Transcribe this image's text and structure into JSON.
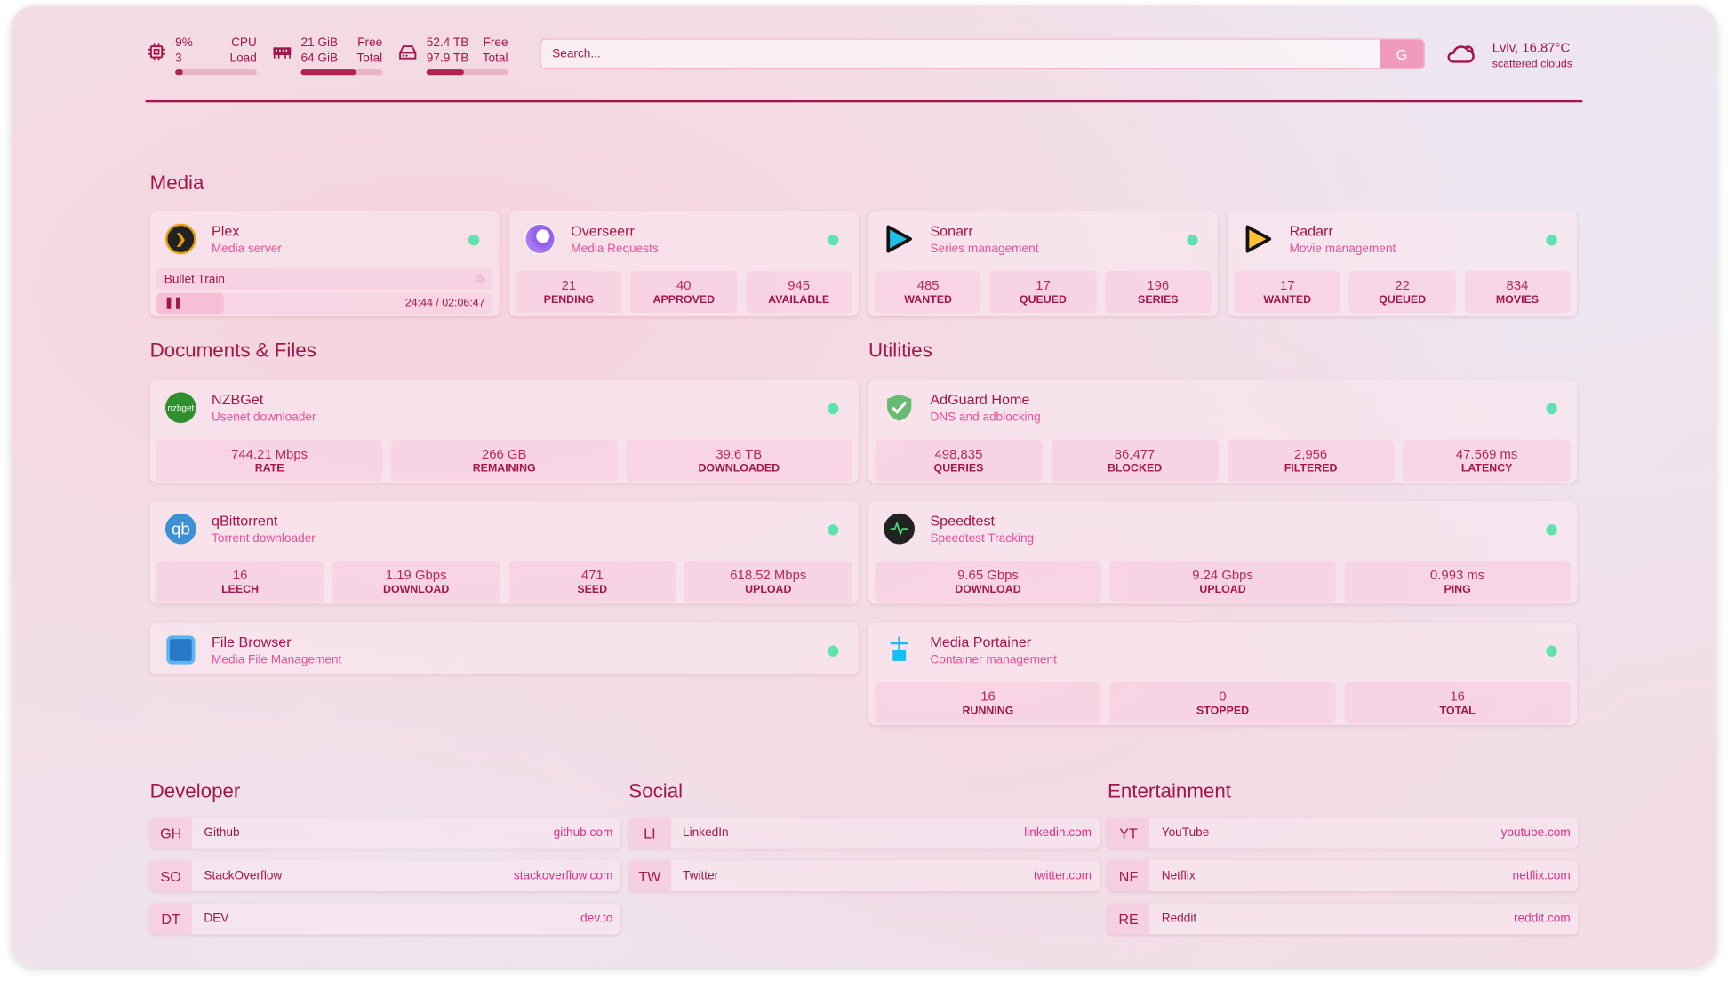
{
  "resources": {
    "cpu": {
      "value": "9%",
      "sub_value": "3",
      "label": "CPU",
      "sub_label": "Load",
      "usage_percent": 9,
      "icon": "cpu-icon"
    },
    "memory": {
      "value": "21 GiB",
      "sub_value": "64 GiB",
      "label": "Free",
      "sub_label": "Total",
      "usage_percent": 67,
      "icon": "memory-icon"
    },
    "disk": {
      "value": "52.4 TB",
      "sub_value": "97.9 TB",
      "label": "Free",
      "sub_label": "Total",
      "usage_percent": 46,
      "icon": "disk-icon"
    }
  },
  "search": {
    "placeholder": "Search...",
    "button": "G"
  },
  "weather": {
    "location": "Lviv, 16.87°C",
    "condition": "scattered clouds",
    "icon": "cloud-icon"
  },
  "colors": {
    "accent": "#a3164a",
    "subtitle": "#e8509a",
    "status_online": "#5fe3ad"
  },
  "media": {
    "title": "Media",
    "plex": {
      "name": "Plex",
      "desc": "Media server",
      "now_playing": "Bullet Train",
      "time": "24:44 / 02:06:47",
      "progress_percent": 20
    },
    "cards": [
      {
        "name": "Overseerr",
        "desc": "Media Requests",
        "stats": [
          {
            "v": "21",
            "l": "PENDING"
          },
          {
            "v": "40",
            "l": "APPROVED"
          },
          {
            "v": "945",
            "l": "AVAILABLE"
          }
        ]
      },
      {
        "name": "Sonarr",
        "desc": "Series management",
        "stats": [
          {
            "v": "485",
            "l": "WANTED"
          },
          {
            "v": "17",
            "l": "QUEUED"
          },
          {
            "v": "196",
            "l": "SERIES"
          }
        ]
      },
      {
        "name": "Radarr",
        "desc": "Movie management",
        "stats": [
          {
            "v": "17",
            "l": "WANTED"
          },
          {
            "v": "22",
            "l": "QUEUED"
          },
          {
            "v": "834",
            "l": "MOVIES"
          }
        ]
      }
    ]
  },
  "documents": {
    "title": "Documents & Files",
    "cards": [
      {
        "name": "NZBGet",
        "desc": "Usenet downloader",
        "logo": "nzbget",
        "stats": [
          {
            "v": "744.21 Mbps",
            "l": "RATE"
          },
          {
            "v": "266 GB",
            "l": "REMAINING"
          },
          {
            "v": "39.6 TB",
            "l": "DOWNLOADED"
          }
        ]
      },
      {
        "name": "qBittorrent",
        "desc": "Torrent downloader",
        "logo": "qb",
        "stats": [
          {
            "v": "16",
            "l": "LEECH"
          },
          {
            "v": "1.19 Gbps",
            "l": "DOWNLOAD"
          },
          {
            "v": "471",
            "l": "SEED"
          },
          {
            "v": "618.52 Mbps",
            "l": "UPLOAD"
          }
        ]
      },
      {
        "name": "File Browser",
        "desc": "Media File Management"
      }
    ]
  },
  "utilities": {
    "title": "Utilities",
    "cards": [
      {
        "name": "AdGuard Home",
        "desc": "DNS and adblocking",
        "stats": [
          {
            "v": "498,835",
            "l": "QUERIES"
          },
          {
            "v": "86,477",
            "l": "BLOCKED"
          },
          {
            "v": "2,956",
            "l": "FILTERED"
          },
          {
            "v": "47.569 ms",
            "l": "LATENCY"
          }
        ]
      },
      {
        "name": "Speedtest",
        "desc": "Speedtest Tracking",
        "stats": [
          {
            "v": "9.65 Gbps",
            "l": "DOWNLOAD"
          },
          {
            "v": "9.24 Gbps",
            "l": "UPLOAD"
          },
          {
            "v": "0.993 ms",
            "l": "PING"
          }
        ]
      },
      {
        "name": "Media Portainer",
        "desc": "Container management",
        "stats": [
          {
            "v": "16",
            "l": "RUNNING"
          },
          {
            "v": "0",
            "l": "STOPPED"
          },
          {
            "v": "16",
            "l": "TOTAL"
          }
        ]
      }
    ]
  },
  "bookmarks": [
    {
      "title": "Developer",
      "items": [
        {
          "abbr": "GH",
          "name": "Github",
          "url": "github.com"
        },
        {
          "abbr": "SO",
          "name": "StackOverflow",
          "url": "stackoverflow.com"
        },
        {
          "abbr": "DT",
          "name": "DEV",
          "url": "dev.to"
        }
      ]
    },
    {
      "title": "Social",
      "items": [
        {
          "abbr": "LI",
          "name": "LinkedIn",
          "url": "linkedin.com"
        },
        {
          "abbr": "TW",
          "name": "Twitter",
          "url": "twitter.com"
        }
      ]
    },
    {
      "title": "Entertainment",
      "items": [
        {
          "abbr": "YT",
          "name": "YouTube",
          "url": "youtube.com"
        },
        {
          "abbr": "NF",
          "name": "Netflix",
          "url": "netflix.com"
        },
        {
          "abbr": "RE",
          "name": "Reddit",
          "url": "reddit.com"
        }
      ]
    }
  ]
}
